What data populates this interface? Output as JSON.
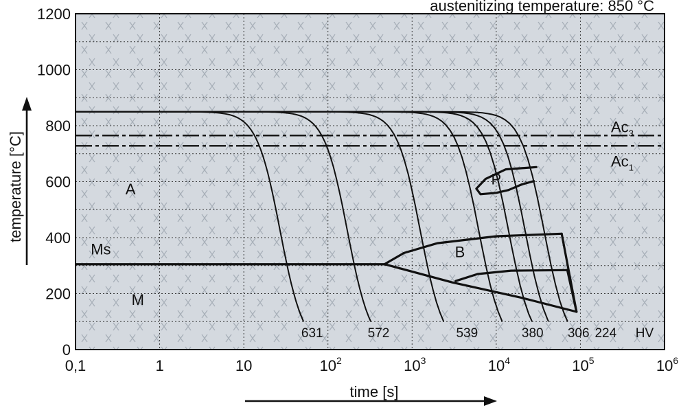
{
  "chart_data": {
    "type": "line",
    "title": "austenitizing temperature: 850 °C",
    "xlabel": "time [s]",
    "ylabel": "temperature [°C]",
    "x_scale": "log",
    "xlim": [
      0.1,
      1000000
    ],
    "ylim": [
      0,
      1200
    ],
    "x_tick_labels": [
      {
        "x": 0.1,
        "base": "0,1",
        "exp": ""
      },
      {
        "x": 1,
        "base": "1",
        "exp": ""
      },
      {
        "x": 10,
        "base": "10",
        "exp": ""
      },
      {
        "x": 100,
        "base": "10",
        "exp": "2"
      },
      {
        "x": 1000,
        "base": "10",
        "exp": "3"
      },
      {
        "x": 10000,
        "base": "10",
        "exp": "4"
      },
      {
        "x": 100000,
        "base": "10",
        "exp": "5"
      },
      {
        "x": 1000000,
        "base": "10",
        "exp": "6"
      }
    ],
    "y_ticks": [
      0,
      200,
      400,
      600,
      800,
      1000,
      1200
    ],
    "y_tick_labels": [
      "0",
      "200",
      "400",
      "600",
      "800",
      "1000",
      "1200"
    ],
    "grid": true,
    "austenitizing_temperature": 850,
    "reference_lines": [
      {
        "name": "Ac",
        "subscript": "3",
        "y": 765
      },
      {
        "name": "Ac",
        "subscript": "1",
        "y": 728
      }
    ],
    "ms_line": {
      "label": "Ms",
      "y": 305,
      "x_from": 0.1,
      "x_to": 470
    },
    "cooling_curves": [
      {
        "t_mid": 27,
        "hardness": "631",
        "hardness_x": 65
      },
      {
        "t_mid": 170,
        "hardness": "572",
        "hardness_x": 400
      },
      {
        "t_mid": 1250,
        "hardness": "539",
        "hardness_x": 4500
      },
      {
        "t_mid": 6200,
        "hardness": "380",
        "hardness_x": 27000
      },
      {
        "t_mid": 14000,
        "hardness": "306",
        "hardness_x": 95000
      },
      {
        "t_mid": 22000,
        "hardness": "224",
        "hardness_x": 200000
      },
      {
        "t_mid": 37000,
        "hardness": "",
        "hardness_x": null
      }
    ],
    "hardness_unit": "HV",
    "phase_regions": [
      {
        "label": "A",
        "x": 0.45,
        "y": 555
      },
      {
        "label": "P",
        "x": 10000,
        "y": 590
      },
      {
        "label": "B",
        "x": 3700,
        "y": 330
      },
      {
        "label": "M",
        "x": 0.55,
        "y": 160
      },
      {
        "label": "Ms",
        "x": 0.2,
        "y": 340
      }
    ],
    "transformation_lines": [
      {
        "name": "pearlite-start",
        "points": [
          [
            30000,
            652
          ],
          [
            13000,
            644
          ],
          [
            7500,
            610
          ],
          [
            5800,
            575
          ],
          [
            6500,
            555
          ],
          [
            10000,
            560
          ],
          [
            14000,
            570
          ]
        ]
      },
      {
        "name": "pearlite-end",
        "points": [
          [
            14000,
            570
          ],
          [
            20000,
            590
          ],
          [
            28000,
            602
          ]
        ]
      },
      {
        "name": "bainite-start",
        "points": [
          [
            470,
            305
          ],
          [
            800,
            345
          ],
          [
            2000,
            380
          ],
          [
            10000,
            405
          ],
          [
            60000,
            414
          ]
        ]
      },
      {
        "name": "bainite-end-upper",
        "points": [
          [
            60000,
            414
          ],
          [
            90000,
            135
          ]
        ]
      },
      {
        "name": "bainite-boundary-lower",
        "points": [
          [
            470,
            305
          ],
          [
            3000,
            240
          ],
          [
            20000,
            185
          ],
          [
            90000,
            135
          ]
        ]
      },
      {
        "name": "bainite-inner",
        "points": [
          [
            3300,
            245
          ],
          [
            6000,
            270
          ],
          [
            15000,
            282
          ],
          [
            70000,
            284
          ]
        ]
      },
      {
        "name": "bainite-inner-end",
        "points": [
          [
            70000,
            284
          ],
          [
            90000,
            135
          ]
        ]
      }
    ]
  }
}
